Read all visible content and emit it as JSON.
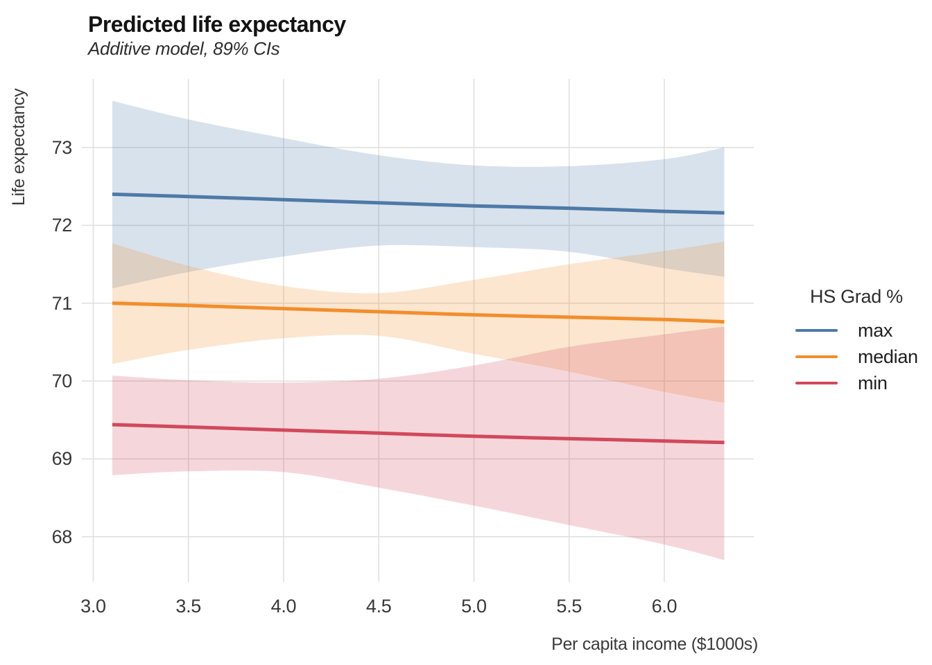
{
  "title": "Predicted life expectancy",
  "subtitle": "Additive model, 89% CIs",
  "chart_data": {
    "type": "line",
    "title": "Predicted life expectancy",
    "subtitle": "Additive model, 89% CIs",
    "xlabel": "Per capita income ($1000s)",
    "ylabel": "Life expectancy",
    "ci_level": "89%",
    "grid": "major",
    "legend_title": "HS Grad %",
    "legend_position": "right",
    "xlim": [
      2.94,
      6.47
    ],
    "ylim": [
      67.42,
      73.88
    ],
    "x_ticks": [
      3.0,
      3.5,
      4.0,
      4.5,
      5.0,
      5.5,
      6.0
    ],
    "x_tick_labels": [
      "3.0",
      "3.5",
      "4.0",
      "4.5",
      "5.0",
      "5.5",
      "6.0"
    ],
    "y_ticks": [
      68,
      69,
      70,
      71,
      72,
      73
    ],
    "y_tick_labels": [
      "68",
      "69",
      "70",
      "71",
      "72",
      "73"
    ],
    "ribbon_opacity": 0.22,
    "x": [
      3.1,
      3.5,
      4.0,
      4.5,
      5.0,
      5.5,
      6.0,
      6.315
    ],
    "series": [
      {
        "name": "max",
        "color": "#4E79A7",
        "values": [
          72.4,
          72.37,
          72.33,
          72.29,
          72.25,
          72.22,
          72.18,
          72.16
        ],
        "ci_hi": [
          73.6,
          73.36,
          73.12,
          72.9,
          72.77,
          72.76,
          72.85,
          73.0
        ],
        "ci_lo": [
          71.19,
          71.4,
          71.6,
          71.74,
          71.72,
          71.66,
          71.45,
          71.34
        ]
      },
      {
        "name": "median",
        "color": "#F28E2B",
        "values": [
          71.0,
          70.97,
          70.93,
          70.89,
          70.85,
          70.82,
          70.79,
          70.76
        ],
        "ci_hi": [
          71.77,
          71.48,
          71.22,
          71.13,
          71.3,
          71.5,
          71.67,
          71.79
        ],
        "ci_lo": [
          70.22,
          70.4,
          70.55,
          70.58,
          70.35,
          70.12,
          69.86,
          69.72
        ]
      },
      {
        "name": "min",
        "color": "#D1495B",
        "values": [
          69.44,
          69.41,
          69.37,
          69.33,
          69.29,
          69.26,
          69.23,
          69.21
        ],
        "ci_hi": [
          70.07,
          70.01,
          69.98,
          70.03,
          70.2,
          70.44,
          70.6,
          70.7
        ],
        "ci_lo": [
          68.79,
          68.84,
          68.83,
          68.63,
          68.4,
          68.15,
          67.9,
          67.7
        ]
      }
    ]
  },
  "colors": {
    "background": "#ffffff",
    "gridline": "#E0E0E0",
    "title_text": "#131313",
    "axis_text": "#383838",
    "series_max": "#4E79A7",
    "series_median": "#F28E2B",
    "series_min": "#D1495B"
  }
}
